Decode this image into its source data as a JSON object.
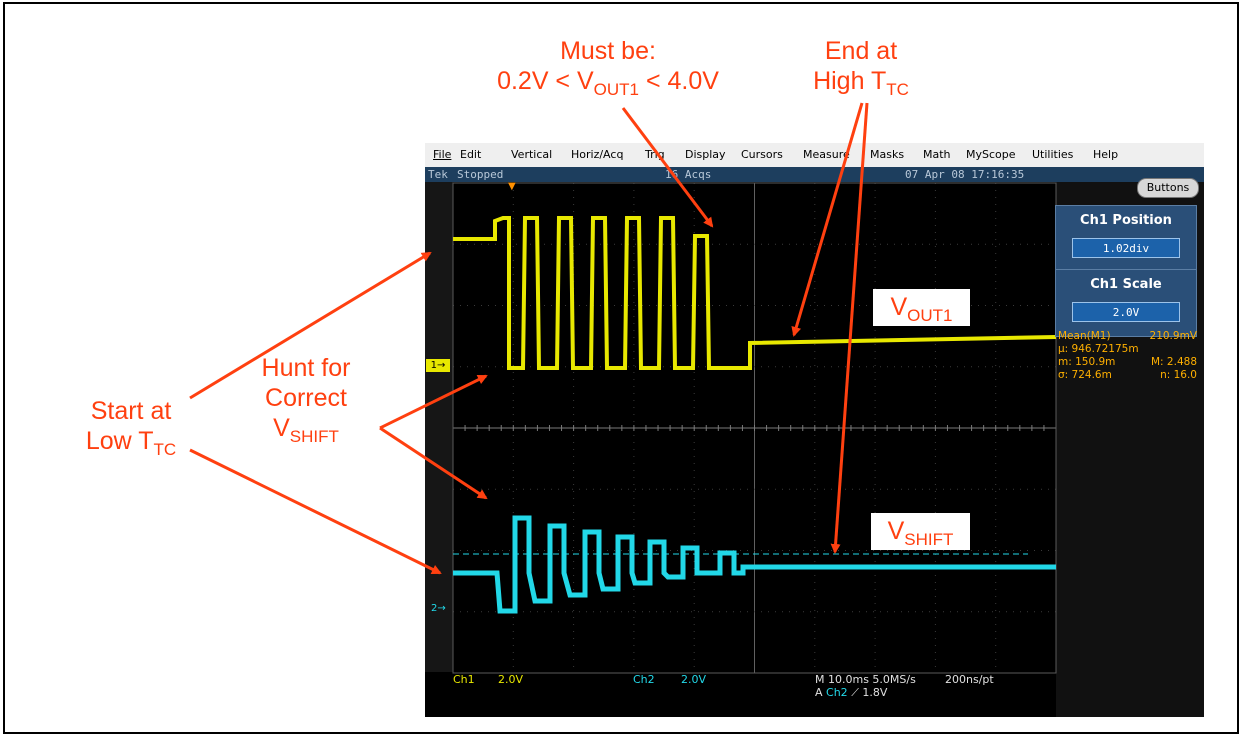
{
  "annotations": {
    "must_be_line1": "Must be:",
    "must_be_line2": "0.2V < V",
    "must_be_sub": "OUT1",
    "must_be_tail": " < 4.0V",
    "end_at_line1": "End at",
    "end_at_line2": "High T",
    "end_at_sub": "TC",
    "start_at_line1": "Start at",
    "start_at_line2": "Low T",
    "start_at_sub": "TC",
    "hunt_line1": "Hunt for",
    "hunt_line2": "Correct",
    "hunt_line3": "V",
    "hunt_sub": "SHIFT",
    "vout_label": "V",
    "vout_sub": "OUT1",
    "vshift_label": "V",
    "vshift_sub": "SHIFT"
  },
  "menu": [
    "File",
    "Edit",
    "Vertical",
    "Horiz/Acq",
    "Trig",
    "Display",
    "Cursors",
    "Measure",
    "Masks",
    "Math",
    "MyScope",
    "Utilities",
    "Help"
  ],
  "status": {
    "brand": "Tek",
    "state": "Stopped",
    "acqs": "16 Acqs",
    "datetime": "07 Apr 08 17:16:35",
    "buttons_label": "Buttons"
  },
  "panels": {
    "ch1_position_title": "Ch1 Position",
    "ch1_position_value": "1.02div",
    "ch1_scale_title": "Ch1 Scale",
    "ch1_scale_value": "2.0V"
  },
  "measurements": {
    "mean_label": "Mean(M1)",
    "mean_value": "210.9mV",
    "mu": "µ: 946.72175m",
    "m_min": "m: 150.9m",
    "m_max": "M: 2.488",
    "sigma": "σ: 724.6m",
    "n": "n: 16.0"
  },
  "bottom": {
    "ch1": "Ch1",
    "ch1_scale": "2.0V",
    "ch2": "Ch2",
    "ch2_scale": "2.0V",
    "timebase": "M 10.0ms 5.0MS/s",
    "record": "200ns/pt",
    "trig_prefix": "A",
    "trig_src": "Ch2",
    "trig_slope": "⟋",
    "trig_level": "1.8V"
  },
  "markers": {
    "ch1": "1→",
    "ch2": "2→"
  },
  "colors": {
    "annotation": "#ff4010",
    "ch1": "#e8e800",
    "ch2": "#22d8e8",
    "measurement": "#ffb000"
  }
}
